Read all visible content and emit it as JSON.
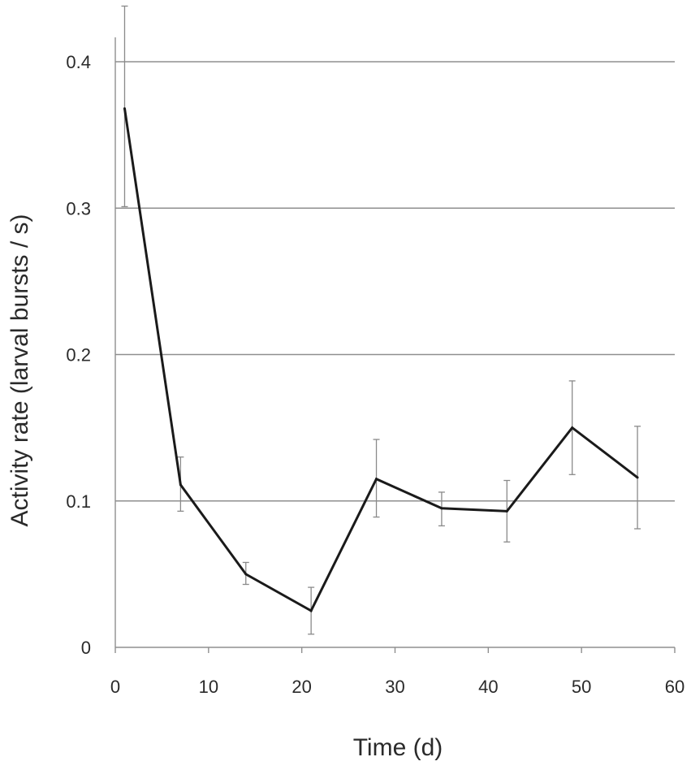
{
  "chart_data": {
    "type": "line",
    "title": "",
    "xlabel": "Time (d)",
    "ylabel": "Activity rate (larval bursts / s)",
    "xlim": [
      0,
      60
    ],
    "ylim": [
      0,
      0.4
    ],
    "x_ticks": [
      0,
      10,
      20,
      30,
      40,
      50,
      60
    ],
    "x_tick_labels": [
      "0",
      "10",
      "20",
      "30",
      "40",
      "50",
      "60"
    ],
    "y_ticks": [
      0,
      0.1,
      0.2,
      0.3,
      0.4
    ],
    "y_tick_labels": [
      "0",
      "0.1",
      "0.2",
      "0.3",
      "0.4"
    ],
    "grid": "horizontal",
    "legend": "none",
    "series": [
      {
        "color": "#1a1a1a",
        "x": [
          1,
          7,
          14,
          21,
          28,
          35,
          42,
          49,
          56
        ],
        "y": [
          0.368,
          0.111,
          0.05,
          0.025,
          0.115,
          0.095,
          0.093,
          0.15,
          0.116
        ],
        "error_low": [
          0.301,
          0.093,
          0.043,
          0.009,
          0.089,
          0.083,
          0.072,
          0.118,
          0.081
        ],
        "error_high": [
          0.438,
          0.13,
          0.058,
          0.041,
          0.142,
          0.106,
          0.114,
          0.182,
          0.151
        ]
      }
    ],
    "colors": {
      "line": "#1a1a1a",
      "grid": "#8f8f8f",
      "error_bar": "#8a8a8a",
      "axis": "#8f8f8f",
      "text": "#2a2a2a"
    }
  }
}
